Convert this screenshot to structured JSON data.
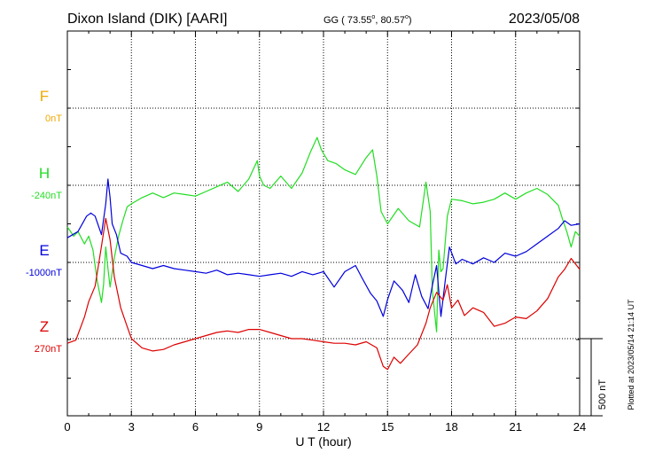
{
  "header": {
    "station": "Dixon Island (DIK)  [AARI]",
    "coords": "GG ( 73.55",
    "coords_sep": ",  80.57",
    "coords_end": ")",
    "date": "2023/05/08"
  },
  "plotted_note": "Plotted at 2023/05/14 21:14 UT",
  "scale_label": "500 nT",
  "chart_data": {
    "type": "line",
    "xlabel": "U T (hour)",
    "xlim": [
      0,
      24
    ],
    "x_ticks": [
      "0",
      "3",
      "6",
      "9",
      "12",
      "15",
      "18",
      "21",
      "24"
    ],
    "scale_nT_per_division": 500,
    "series": [
      {
        "name": "F",
        "baseline_label": "0nT",
        "color": "#f0a800",
        "x": [],
        "y": []
      },
      {
        "name": "H",
        "baseline_label": "-240nT",
        "color": "#22dd22",
        "x": [
          0,
          0.3,
          0.5,
          0.8,
          1.0,
          1.2,
          1.4,
          1.6,
          1.7,
          1.8,
          1.9,
          2.0,
          2.2,
          2.4,
          2.6,
          2.8,
          3.0,
          3.5,
          4.0,
          4.5,
          5.0,
          5.5,
          6.0,
          6.5,
          7.0,
          7.5,
          8.0,
          8.5,
          8.9,
          9.0,
          9.2,
          9.5,
          10.0,
          10.5,
          11.0,
          11.4,
          11.7,
          11.9,
          12.2,
          12.6,
          13.0,
          13.5,
          14.0,
          14.3,
          14.5,
          14.7,
          15.0,
          15.5,
          16.0,
          16.5,
          16.8,
          17.0,
          17.1,
          17.3,
          17.4,
          17.5,
          17.6,
          17.8,
          18.0,
          18.5,
          19.0,
          19.5,
          20.0,
          20.5,
          21.0,
          21.5,
          22.0,
          22.5,
          23.0,
          23.2,
          23.4,
          23.6,
          23.8,
          24.0
        ],
        "y": [
          -270,
          -330,
          -300,
          -380,
          -330,
          -420,
          -620,
          -760,
          -640,
          -400,
          -540,
          -660,
          -470,
          -330,
          -230,
          -140,
          -120,
          -80,
          -50,
          -80,
          -50,
          -60,
          -70,
          -40,
          -10,
          20,
          -40,
          40,
          160,
          60,
          0,
          -20,
          60,
          -20,
          80,
          220,
          310,
          230,
          160,
          140,
          100,
          70,
          180,
          230,
          60,
          -170,
          -250,
          -150,
          -230,
          -270,
          20,
          -170,
          -680,
          -950,
          -420,
          -560,
          -540,
          -200,
          -90,
          -100,
          -120,
          -110,
          -90,
          -50,
          -90,
          -50,
          -20,
          -60,
          -130,
          -220,
          -300,
          -400,
          -300,
          -330
        ]
      },
      {
        "name": "E",
        "baseline_label": "-1000nT",
        "color": "#0000dd",
        "x": [
          0,
          0.5,
          0.9,
          1.1,
          1.3,
          1.6,
          1.8,
          1.9,
          2.0,
          2.1,
          2.3,
          2.5,
          2.8,
          3.0,
          3.5,
          4.0,
          4.5,
          5.0,
          5.5,
          6.0,
          6.5,
          7.0,
          7.5,
          8.0,
          8.5,
          9.0,
          9.5,
          10.0,
          10.5,
          11.0,
          11.5,
          12.0,
          12.5,
          13.0,
          13.5,
          13.8,
          14.2,
          14.5,
          14.8,
          15.0,
          15.3,
          15.7,
          16.0,
          16.3,
          16.6,
          16.9,
          17.1,
          17.3,
          17.5,
          17.7,
          17.9,
          18.2,
          18.5,
          19.0,
          19.5,
          20.0,
          20.5,
          21.0,
          21.5,
          22.0,
          22.5,
          23.0,
          23.3,
          23.6,
          24.0
        ],
        "y": [
          160,
          200,
          300,
          320,
          300,
          180,
          380,
          540,
          420,
          250,
          180,
          60,
          40,
          0,
          -20,
          -40,
          -20,
          -40,
          -50,
          -60,
          -70,
          -50,
          -80,
          -70,
          -80,
          -90,
          -80,
          -70,
          -90,
          -60,
          -80,
          -60,
          -160,
          -60,
          -20,
          -100,
          -200,
          -250,
          -350,
          -240,
          -120,
          -180,
          -260,
          -80,
          -220,
          -300,
          -150,
          -20,
          -350,
          -120,
          100,
          -10,
          20,
          -10,
          30,
          0,
          60,
          40,
          70,
          120,
          170,
          220,
          270,
          240,
          250
        ]
      },
      {
        "name": "Z",
        "baseline_label": "270nT",
        "color": "#dd0000",
        "x": [
          0,
          0.4,
          0.8,
          1.0,
          1.3,
          1.6,
          1.8,
          2.0,
          2.2,
          2.5,
          2.8,
          3.0,
          3.5,
          4.0,
          4.5,
          5.0,
          5.5,
          6.0,
          6.5,
          7.0,
          7.5,
          8.0,
          8.5,
          9.0,
          9.5,
          10.0,
          10.5,
          11.0,
          11.5,
          12.0,
          12.5,
          13.0,
          13.5,
          14.0,
          14.5,
          14.8,
          15.0,
          15.3,
          15.6,
          16.0,
          16.4,
          16.8,
          17.0,
          17.3,
          17.6,
          17.8,
          18.0,
          18.3,
          18.6,
          19.0,
          19.5,
          20.0,
          20.5,
          21.0,
          21.5,
          22.0,
          22.5,
          23.0,
          23.3,
          23.6,
          24.0
        ],
        "y": [
          -30,
          -10,
          140,
          240,
          340,
          600,
          780,
          640,
          400,
          200,
          80,
          0,
          -60,
          -80,
          -70,
          -40,
          -20,
          0,
          20,
          40,
          50,
          40,
          60,
          60,
          40,
          20,
          0,
          0,
          -10,
          -20,
          -30,
          -30,
          -40,
          -20,
          -60,
          -180,
          -200,
          -120,
          -160,
          -100,
          -40,
          100,
          200,
          300,
          250,
          350,
          200,
          250,
          150,
          200,
          170,
          80,
          100,
          140,
          130,
          180,
          260,
          400,
          450,
          520,
          450
        ]
      }
    ]
  }
}
